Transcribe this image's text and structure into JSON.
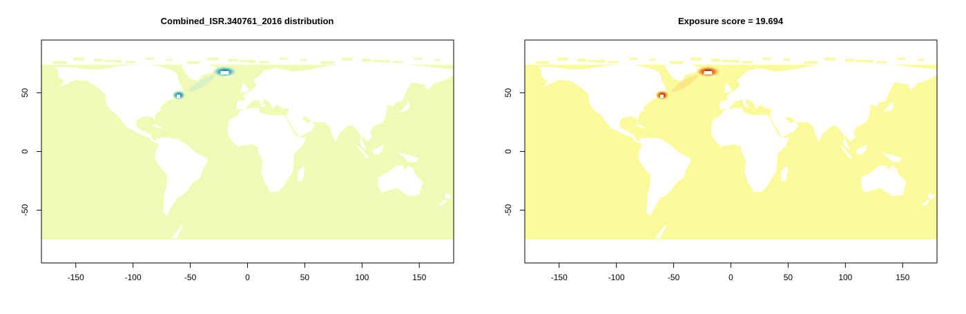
{
  "panels": [
    {
      "title": "Combined_ISR.340761_2016 distribution",
      "ocean_color": "#f0fab4",
      "hotspot_colors": [
        "#0b2d6b",
        "#1a6fae",
        "#3aa3c3",
        "#7ccdbb",
        "#c9ead0"
      ]
    },
    {
      "title": "Exposure score = 19.694",
      "ocean_color": "#fbfa9b",
      "hotspot_colors": [
        "#3d0a56",
        "#9c1a1a",
        "#d9541c",
        "#f29d3b",
        "#f8d873"
      ]
    }
  ],
  "axes": {
    "x_range": [
      -180,
      180
    ],
    "y_range": [
      -95,
      95
    ],
    "x_ticks": [
      "-150",
      "-100",
      "-50",
      "0",
      "50",
      "100",
      "150"
    ],
    "x_tick_values": [
      -150,
      -100,
      -50,
      0,
      50,
      100,
      150
    ],
    "y_ticks": [
      "50",
      "0",
      "-50"
    ],
    "y_tick_values": [
      50,
      0,
      -50
    ]
  },
  "map": {
    "ocean_lat_range": [
      -75,
      74
    ],
    "hotspots": [
      {
        "lon": -20,
        "lat": 68
      },
      {
        "lon": -60,
        "lat": 48
      }
    ]
  }
}
